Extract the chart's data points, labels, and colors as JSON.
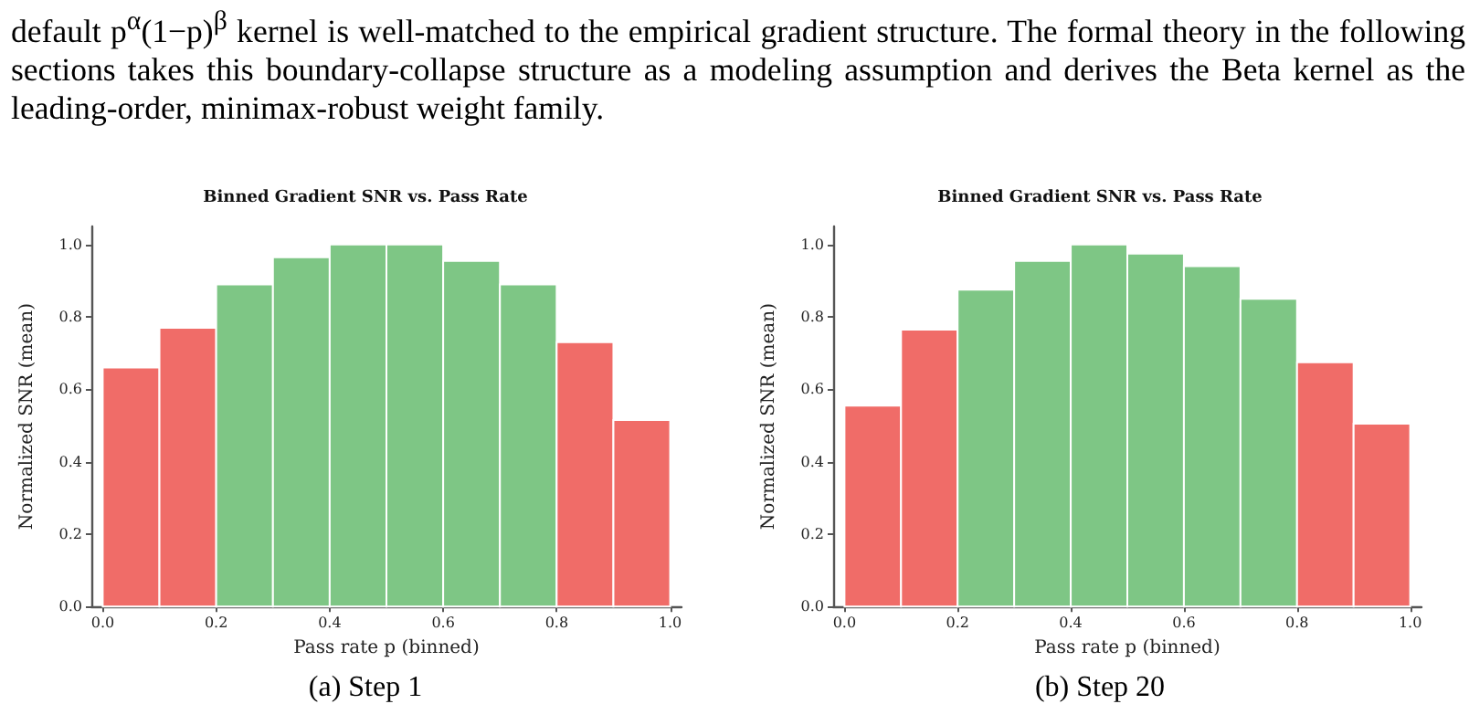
{
  "chart_data": [
    {
      "type": "histogram",
      "title": "Binned Gradient SNR vs. Pass Rate",
      "xlabel": "Pass rate p (binned)",
      "ylabel": "Normalized SNR (mean)",
      "annotations": [
        "default p$^{α}$(1−p)$^{β}$ kernel is well-matched to the empirical gradient structure. The formal theory in the following sections takes this boundary-collapse structure as a modeling assumption and derives the Beta kernel as the leading-order, minimax-robust weight family.",
        "(a) Step 1"
      ],
      "bins": [
        0,
        0.1,
        0.2,
        0.3,
        0.4,
        0.5,
        0.6,
        0.7,
        0.8,
        0.9,
        1.0
      ],
      "values": [
        0.66,
        0.77,
        0.89,
        0.965,
        1.0,
        1.0,
        0.955,
        0.89,
        0.73,
        0.515
      ],
      "colors": [
        "#f06c68",
        "#f06c68",
        "#7ec685",
        "#7ec685",
        "#7ec685",
        "#7ec685",
        "#7ec685",
        "#7ec685",
        "#f06c68",
        "#f06c68"
      ],
      "xlim": [
        -0.02,
        1.02
      ],
      "ylim": [
        0,
        1.05
      ],
      "xticks": [
        {
          "value": 0,
          "label": "0.0"
        },
        {
          "value": 0.2,
          "label": "0.2"
        },
        {
          "value": 0.4,
          "label": "0.4"
        },
        {
          "value": 0.6,
          "label": "0.6"
        },
        {
          "value": 0.8,
          "label": "0.8"
        },
        {
          "value": 1,
          "label": "1.0"
        }
      ],
      "yticks": [
        {
          "value": 0,
          "label": "0.0"
        },
        {
          "value": 0.2,
          "label": "0.2"
        },
        {
          "value": 0.4,
          "label": "0.4"
        },
        {
          "value": 0.6,
          "label": "0.6"
        },
        {
          "value": 0.8,
          "label": "0.8"
        },
        {
          "value": 1,
          "label": "1.0"
        }
      ]
    },
    {
      "type": "histogram",
      "title": "Binned Gradient SNR vs. Pass Rate",
      "xlabel": "Pass rate p (binned)",
      "ylabel": "Normalized SNR (mean)",
      "annotations": [
        "(b) Step 20"
      ],
      "bins": [
        0,
        0.1,
        0.2,
        0.3,
        0.4,
        0.5,
        0.6,
        0.7,
        0.8,
        0.9,
        1.0
      ],
      "values": [
        0.555,
        0.765,
        0.875,
        0.955,
        1.0,
        0.975,
        0.94,
        0.85,
        0.675,
        0.505
      ],
      "colors": [
        "#f06c68",
        "#f06c68",
        "#7ec685",
        "#7ec685",
        "#7ec685",
        "#7ec685",
        "#7ec685",
        "#7ec685",
        "#f06c68",
        "#f06c68"
      ],
      "xlim": [
        -0.02,
        1.02
      ],
      "ylim": [
        0,
        1.05
      ],
      "xticks": [
        {
          "value": 0,
          "label": "0.0"
        },
        {
          "value": 0.2,
          "label": "0.2"
        },
        {
          "value": 0.4,
          "label": "0.4"
        },
        {
          "value": 0.6,
          "label": "0.6"
        },
        {
          "value": 0.8,
          "label": "0.8"
        },
        {
          "value": 1,
          "label": "1.0"
        }
      ],
      "yticks": [
        {
          "value": 0,
          "label": "0.0"
        },
        {
          "value": 0.2,
          "label": "0.2"
        },
        {
          "value": 0.4,
          "label": "0.4"
        },
        {
          "value": 0.6,
          "label": "0.6"
        },
        {
          "value": 0.8,
          "label": "0.8"
        },
        {
          "value": 1,
          "label": "1.0"
        }
      ]
    }
  ]
}
